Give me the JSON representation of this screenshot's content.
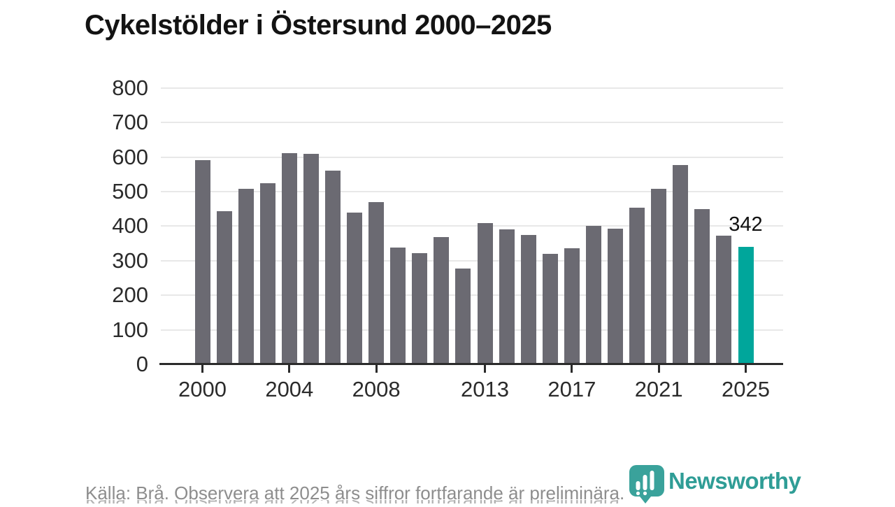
{
  "title": "Cykelstölder i Östersund 2000–2025",
  "footer": {
    "source_note": "Källa: Brå. Observera att 2025 års siffror fortfarande är preliminära."
  },
  "branding": {
    "logo_text": "Newsworthy",
    "logo_icon": "bar-chart-map-pin-icon"
  },
  "colors": {
    "bar": "#6b6a72",
    "accent": "#00a69b",
    "grid": "#e8e8e8",
    "axis": "#2b2b2b",
    "title_text": "#131313",
    "muted_text": "#8d8d8d",
    "logo": "#3aa29b",
    "logo_text": "#2f9d96",
    "icon_marks": "#ffffff"
  },
  "chart_data": {
    "type": "bar",
    "title": "Cykelstölder i Östersund 2000–2025",
    "x": [
      2000,
      2001,
      2002,
      2003,
      2004,
      2005,
      2006,
      2007,
      2008,
      2009,
      2010,
      2011,
      2012,
      2013,
      2014,
      2015,
      2016,
      2017,
      2018,
      2019,
      2020,
      2021,
      2022,
      2023,
      2024,
      2025
    ],
    "values": [
      594,
      446,
      510,
      526,
      613,
      611,
      563,
      441,
      472,
      340,
      324,
      370,
      280,
      411,
      393,
      377,
      322,
      339,
      402,
      395,
      455,
      511,
      578,
      452,
      375,
      342
    ],
    "xlabel": "",
    "ylabel": "",
    "ylim": [
      0,
      800
    ],
    "yticks": [
      0,
      100,
      200,
      300,
      400,
      500,
      600,
      700,
      800
    ],
    "xticks": [
      2000,
      2004,
      2008,
      2013,
      2017,
      2021,
      2025
    ],
    "grid": "horizontal",
    "legend": "none",
    "accent_x": 2025,
    "accent_color": "#00a69b",
    "annotation": {
      "x": 2025,
      "label": "342"
    }
  }
}
